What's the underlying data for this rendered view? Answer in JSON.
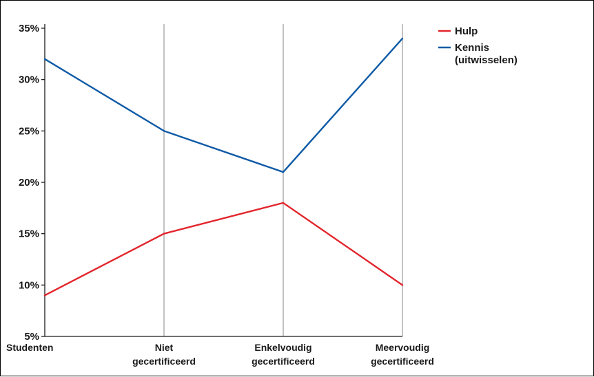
{
  "chart_data": {
    "type": "line",
    "title": "",
    "xlabel": "",
    "ylabel": "",
    "categories": [
      [
        "Studenten"
      ],
      [
        "Niet",
        "gecertificeerd"
      ],
      [
        "Enkelvoudig",
        "gecertificeerd"
      ],
      [
        "Meervoudig",
        "gecertificeerd"
      ]
    ],
    "y_ticks": [
      "5%",
      "10%",
      "15%",
      "20%",
      "25%",
      "30%",
      "35%"
    ],
    "y_tick_values": [
      5,
      10,
      15,
      20,
      25,
      30,
      35
    ],
    "ylim": [
      5,
      35
    ],
    "grid": "vertical lines at middle categories",
    "legend_position": "top-right",
    "series": [
      {
        "name": "Hulp",
        "color": "#e3262d",
        "values": [
          9,
          15,
          18,
          10
        ]
      },
      {
        "name": "Kennis (uitwisselen)",
        "legend_lines": [
          "Kennis",
          "(uitwisselen)"
        ],
        "color": "#0f5aa6",
        "values": [
          32,
          25,
          21,
          34
        ]
      }
    ]
  }
}
